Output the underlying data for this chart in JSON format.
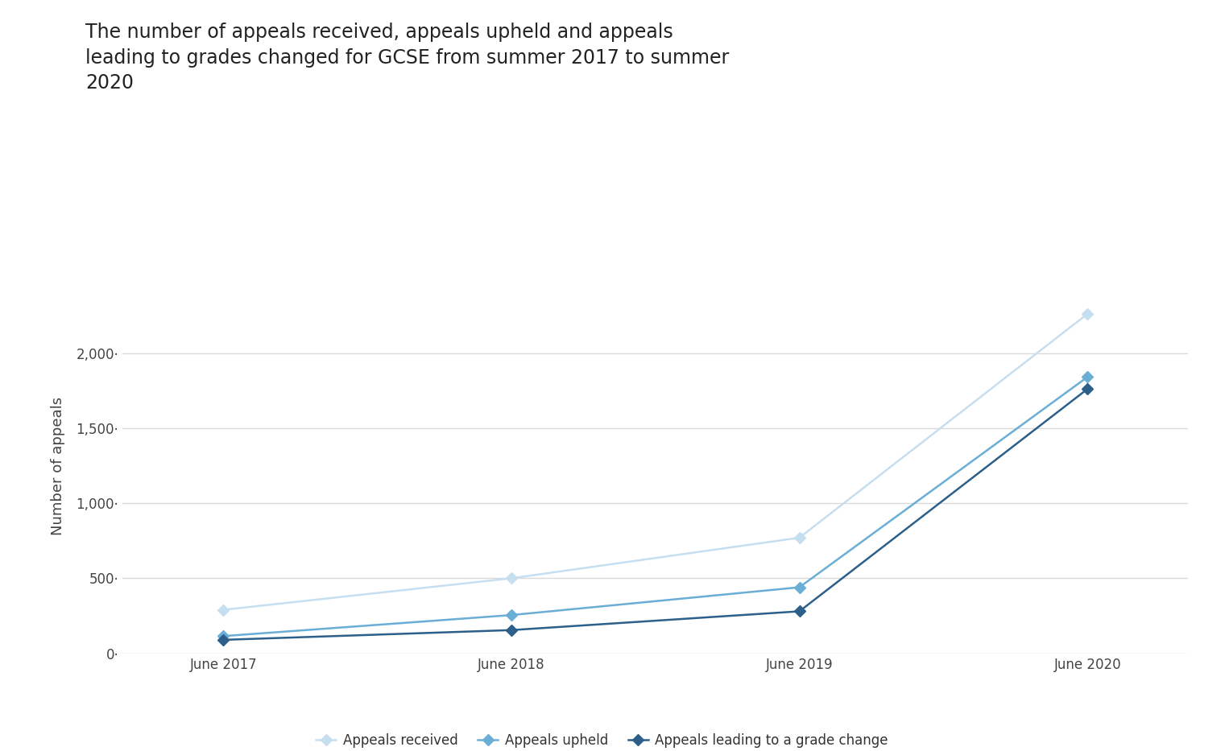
{
  "title": "The number of appeals received, appeals upheld and appeals\nleading to grades changed for GCSE from summer 2017 to summer\n2020",
  "ylabel": "Number of appeals",
  "x_labels": [
    "June 2017",
    "June 2018",
    "June 2019",
    "June 2020"
  ],
  "series": [
    {
      "name": "Appeals received",
      "values": [
        290,
        500,
        770,
        2260
      ],
      "color": "#c6dff0",
      "marker": "D",
      "linewidth": 1.8,
      "markersize": 7
    },
    {
      "name": "Appeals upheld",
      "values": [
        115,
        255,
        440,
        1840
      ],
      "color": "#6aaed6",
      "marker": "D",
      "linewidth": 1.8,
      "markersize": 7
    },
    {
      "name": "Appeals leading to a grade change",
      "values": [
        90,
        155,
        280,
        1760
      ],
      "color": "#2c5f8a",
      "marker": "D",
      "linewidth": 1.8,
      "markersize": 7
    }
  ],
  "ylim": [
    0,
    2500
  ],
  "yticks": [
    0,
    500,
    1000,
    1500,
    2000
  ],
  "background_color": "#ffffff",
  "grid_color": "#d9d9d9",
  "title_fontsize": 17,
  "axis_label_fontsize": 13,
  "tick_fontsize": 12,
  "legend_fontsize": 12
}
